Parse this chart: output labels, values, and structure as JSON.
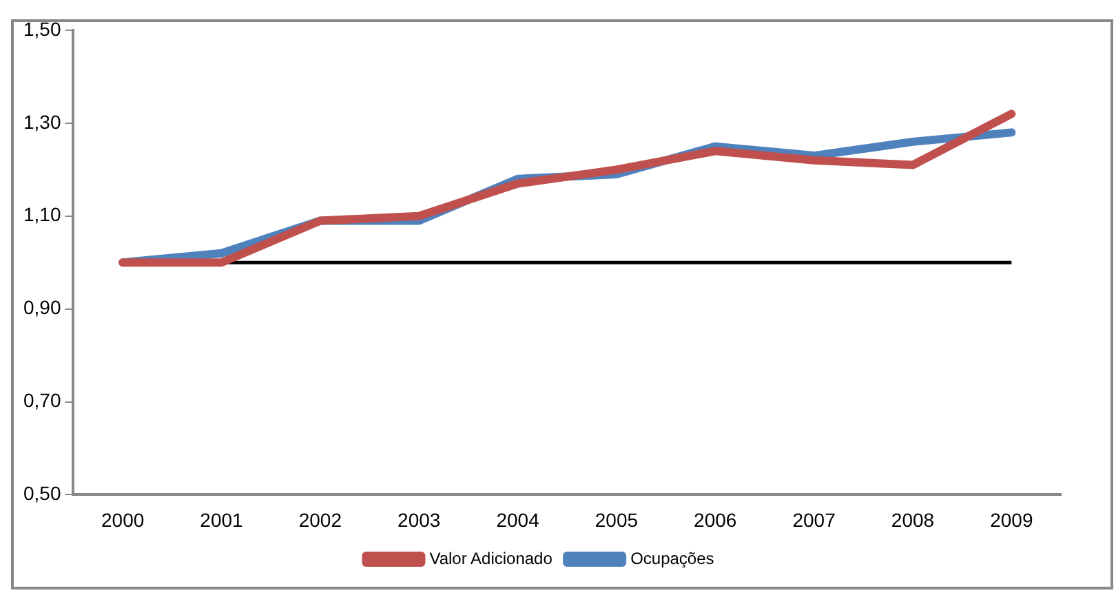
{
  "chart_data": {
    "type": "line",
    "categories": [
      "2000",
      "2001",
      "2002",
      "2003",
      "2004",
      "2005",
      "2006",
      "2007",
      "2008",
      "2009"
    ],
    "series": [
      {
        "name": "Valor Adicionado",
        "color": "#c0504d",
        "values": [
          1.0,
          1.0,
          1.09,
          1.1,
          1.17,
          1.2,
          1.24,
          1.22,
          1.21,
          1.32
        ]
      },
      {
        "name": "Ocupações",
        "color": "#4f81bd",
        "values": [
          1.0,
          1.02,
          1.09,
          1.09,
          1.18,
          1.19,
          1.25,
          1.23,
          1.26,
          1.28
        ]
      }
    ],
    "ylim": [
      0.5,
      1.5
    ],
    "yticks": [
      {
        "value": 0.5,
        "label": "0,50"
      },
      {
        "value": 0.7,
        "label": "0,70"
      },
      {
        "value": 0.9,
        "label": "0,90"
      },
      {
        "value": 1.1,
        "label": "1,10"
      },
      {
        "value": 1.3,
        "label": "1,30"
      },
      {
        "value": 1.5,
        "label": "1,50"
      }
    ],
    "ref_lines": [
      {
        "axis": "y",
        "value": 1.0,
        "color": "#000000"
      }
    ],
    "grid": false,
    "legend": "bottom",
    "marker": "none",
    "line_style": "solid"
  }
}
